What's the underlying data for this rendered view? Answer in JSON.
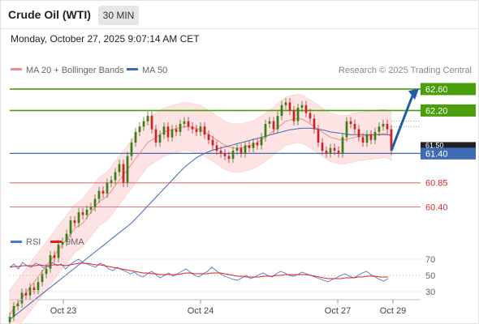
{
  "header": {
    "title": "Crude Oil (WTI)",
    "interval": "30 MIN",
    "datetime": "Monday, October 27, 2025 9:07:14 AM CET"
  },
  "legend": {
    "ma20_label": "MA 20 + Bollinger Bands",
    "ma50_label": "MA 50",
    "credit": "Research © 2025 Trading Central",
    "rsi_label": "RSI",
    "nine_ma_label": "9MA"
  },
  "colors": {
    "up_candle": "#3e7d1a",
    "down_candle": "#c62828",
    "ma20": "#f28c8c",
    "bollinger_fill": "#fde3e3",
    "ma50": "#3f6bb5",
    "target_green": "#4b9e0b",
    "support_red": "#e06666",
    "pivot_blue": "#3f6bb5",
    "rsi_line": "#4a78d6",
    "nine_ma_line": "#e02020",
    "arrow": "#1f5fa8"
  },
  "chart_data": [
    {
      "type": "candlestick",
      "title": "Crude Oil (WTI)",
      "interval": "30 MIN",
      "x_ticks": [
        "Oct 23",
        "Oct 24",
        "Oct 27",
        "Oct 29"
      ],
      "y_range": [
        60.0,
        62.75
      ],
      "price_levels": [
        {
          "label": "62.60",
          "value": 62.6,
          "kind": "resistance",
          "color": "#4b9e0b"
        },
        {
          "label": "62.20",
          "value": 62.2,
          "kind": "resistance",
          "color": "#4b9e0b"
        },
        {
          "label": "61.40",
          "value": 61.4,
          "kind": "pivot",
          "color": "#3f6bb5"
        },
        {
          "label": "60.85",
          "value": 60.85,
          "kind": "support",
          "color": "#e06666"
        },
        {
          "label": "60.40",
          "value": 60.4,
          "kind": "support",
          "color": "#e06666"
        }
      ],
      "partial_label": "61.50",
      "close_series": [
        58.35,
        58.55,
        58.6,
        58.8,
        58.75,
        58.9,
        58.85,
        59.0,
        59.15,
        59.25,
        59.5,
        59.45,
        59.7,
        59.75,
        59.9,
        60.15,
        60.1,
        60.3,
        60.25,
        60.35,
        60.4,
        60.55,
        60.7,
        60.65,
        60.85,
        60.9,
        61.05,
        61.2,
        60.85,
        61.35,
        61.6,
        61.8,
        61.9,
        62.0,
        62.1,
        61.85,
        61.6,
        61.75,
        61.9,
        61.7,
        61.85,
        61.8,
        61.95,
        62.0,
        61.9,
        61.85,
        61.8,
        61.9,
        61.75,
        61.65,
        61.55,
        61.45,
        61.4,
        61.35,
        61.3,
        61.45,
        61.5,
        61.4,
        61.55,
        61.5,
        61.6,
        61.55,
        61.7,
        61.95,
        62.0,
        61.85,
        62.1,
        62.3,
        62.35,
        62.2,
        62.0,
        62.25,
        62.3,
        62.15,
        62.05,
        61.85,
        61.6,
        61.45,
        61.4,
        61.5,
        61.45,
        61.4,
        61.7,
        62.0,
        61.95,
        61.85,
        61.7,
        61.6,
        61.75,
        61.65,
        61.8,
        61.9,
        61.95,
        61.85,
        61.45
      ],
      "ma20": [
        58.4,
        58.5,
        58.6,
        58.7,
        58.8,
        58.9,
        59.0,
        59.1,
        59.2,
        59.3,
        59.4,
        59.5,
        59.6,
        59.7,
        59.8,
        59.9,
        60.0,
        60.05,
        60.1,
        60.2,
        60.3,
        60.4,
        60.5,
        60.55,
        60.6,
        60.7,
        60.8,
        60.9,
        61.0,
        61.1,
        61.2,
        61.3,
        61.4,
        61.5,
        61.6,
        61.65,
        61.7,
        61.75,
        61.8,
        61.82,
        61.84,
        61.86,
        61.88,
        61.9,
        61.9,
        61.88,
        61.86,
        61.84,
        61.8,
        61.75,
        61.7,
        61.65,
        61.6,
        61.55,
        61.52,
        61.5,
        61.5,
        61.5,
        61.52,
        61.54,
        61.56,
        61.6,
        61.65,
        61.7,
        61.76,
        61.82,
        61.88,
        61.94,
        62.0,
        62.02,
        62.04,
        62.05,
        62.04,
        62.0,
        61.95,
        61.9,
        61.85,
        61.8,
        61.75,
        61.7,
        61.68,
        61.66,
        61.65,
        61.66,
        61.68,
        61.7,
        61.72,
        61.72,
        61.73,
        61.74,
        61.75,
        61.76,
        61.77,
        61.76,
        61.72
      ],
      "bollinger_width": 0.45,
      "ma50": [
        58.3,
        58.36,
        58.42,
        58.48,
        58.54,
        58.6,
        58.66,
        58.72,
        58.78,
        58.84,
        58.9,
        58.96,
        59.02,
        59.08,
        59.14,
        59.2,
        59.26,
        59.32,
        59.38,
        59.44,
        59.5,
        59.56,
        59.62,
        59.68,
        59.74,
        59.8,
        59.86,
        59.92,
        59.98,
        60.04,
        60.1,
        60.18,
        60.26,
        60.34,
        60.42,
        60.5,
        60.58,
        60.66,
        60.74,
        60.82,
        60.9,
        60.98,
        61.06,
        61.14,
        61.2,
        61.26,
        61.32,
        61.36,
        61.4,
        61.43,
        61.46,
        61.48,
        61.5,
        61.52,
        61.54,
        61.56,
        61.58,
        61.6,
        61.62,
        61.64,
        61.66,
        61.68,
        61.7,
        61.72,
        61.74,
        61.76,
        61.78,
        61.8,
        61.82,
        61.84,
        61.85,
        61.86,
        61.87,
        61.87,
        61.87,
        61.86,
        61.85,
        61.84,
        61.82,
        61.8,
        61.79,
        61.78,
        61.77,
        61.76,
        61.75,
        61.75,
        61.75,
        61.75,
        61.75,
        61.75,
        61.75,
        61.75,
        61.75,
        61.75,
        61.74
      ]
    },
    {
      "type": "line",
      "title": "RSI",
      "y_ticks": [
        70,
        50,
        30
      ],
      "y_range": [
        20,
        80
      ],
      "series": [
        {
          "name": "RSI",
          "values": [
            60,
            64,
            58,
            66,
            62,
            60,
            65,
            63,
            59,
            61,
            66,
            62,
            64,
            58,
            63,
            67,
            70,
            66,
            64,
            62,
            60,
            65,
            63,
            58,
            56,
            60,
            57,
            55,
            52,
            54,
            50,
            48,
            52,
            55,
            51,
            47,
            50,
            53,
            49,
            52,
            55,
            58,
            54,
            50,
            48,
            52,
            55,
            60,
            56,
            52,
            49,
            47,
            45,
            44,
            47,
            50,
            46,
            48,
            51,
            53,
            50,
            48,
            52,
            55,
            53,
            50,
            49,
            51,
            54,
            52,
            50,
            48,
            46,
            44,
            42,
            45,
            47,
            50,
            52,
            49,
            47,
            50,
            53,
            55,
            51,
            48,
            45,
            43,
            46
          ]
        },
        {
          "name": "9MA",
          "values": [
            60,
            61,
            61,
            62,
            62,
            62,
            62,
            63,
            62,
            62,
            63,
            63,
            63,
            62,
            63,
            64,
            65,
            65,
            65,
            64,
            63,
            63,
            62,
            61,
            60,
            59,
            58,
            57,
            56,
            55,
            54,
            53,
            53,
            52,
            52,
            51,
            51,
            51,
            51,
            51,
            52,
            53,
            53,
            52,
            52,
            52,
            52,
            53,
            53,
            53,
            52,
            51,
            50,
            49,
            49,
            48,
            48,
            48,
            48,
            49,
            49,
            49,
            50,
            50,
            51,
            51,
            51,
            51,
            51,
            51,
            50,
            49,
            48,
            47,
            46,
            46,
            46,
            46,
            47,
            47,
            47,
            48,
            48,
            49,
            49,
            49,
            48,
            48,
            48
          ]
        }
      ]
    }
  ]
}
